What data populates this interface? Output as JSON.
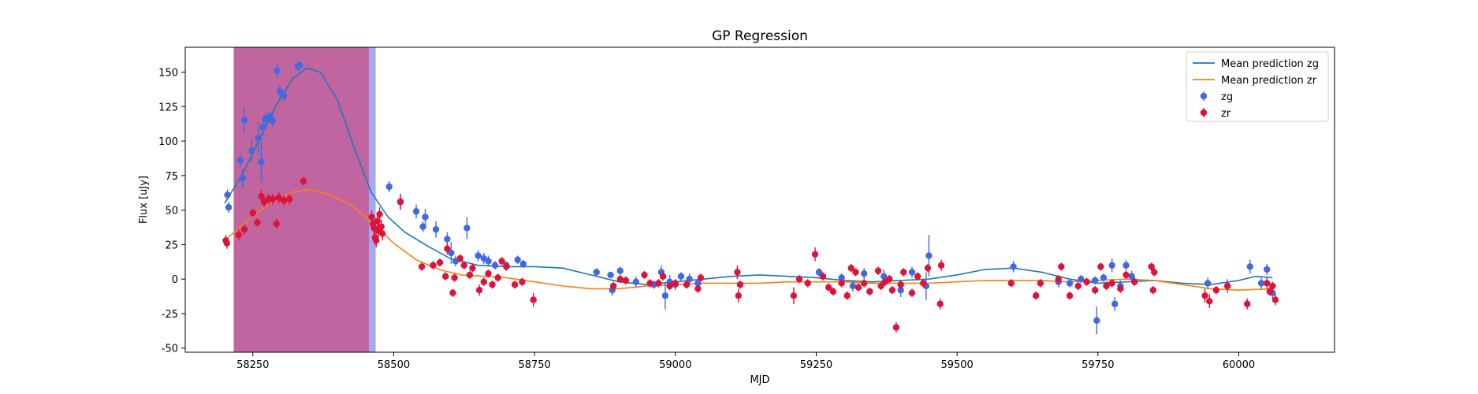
{
  "chart_data": {
    "type": "scatter",
    "title": "GP Regression",
    "xlabel": "MJD",
    "ylabel": "Flux [uJy]",
    "xlim": [
      58130,
      60170
    ],
    "ylim": [
      -53,
      168
    ],
    "xticks": [
      58250,
      58500,
      58750,
      59000,
      59250,
      59500,
      59750,
      60000
    ],
    "yticks": [
      -50,
      -25,
      0,
      25,
      50,
      75,
      100,
      125,
      150
    ],
    "legend_position": "upper right",
    "shaded_regions": [
      {
        "x0": 58216,
        "x1": 58456,
        "color": "#c0659f"
      },
      {
        "x0": 58456,
        "x1": 58468,
        "color": "#a8a8f0"
      }
    ],
    "series": [
      {
        "name": "Mean prediction zg",
        "kind": "line",
        "color": "#1f77b4",
        "x": [
          58200,
          58230,
          58260,
          58290,
          58320,
          58345,
          58370,
          58400,
          58430,
          58460,
          58490,
          58520,
          58560,
          58600,
          58650,
          58700,
          58750,
          58800,
          58850,
          58900,
          58950,
          59000,
          59050,
          59100,
          59150,
          59200,
          59250,
          59300,
          59350,
          59400,
          59450,
          59500,
          59550,
          59600,
          59650,
          59700,
          59750,
          59800,
          59850,
          59900,
          59950,
          60000,
          60030,
          60060
        ],
        "y": [
          55,
          75,
          100,
          125,
          145,
          153,
          150,
          130,
          95,
          63,
          45,
          34,
          24,
          15,
          10,
          9,
          9,
          8,
          3,
          -2,
          -4,
          -2,
          0,
          2,
          3,
          2,
          1,
          -1,
          -2,
          -1,
          0,
          3,
          7,
          8,
          5,
          0,
          -3,
          -2,
          -1,
          -3,
          -4,
          -1,
          2,
          1
        ]
      },
      {
        "name": "Mean prediction zr",
        "kind": "line",
        "color": "#ff7f0e",
        "x": [
          58200,
          58240,
          58280,
          58320,
          58350,
          58380,
          58420,
          58460,
          58500,
          58540,
          58580,
          58620,
          58660,
          58700,
          58750,
          58800,
          58850,
          58900,
          58950,
          59000,
          59050,
          59100,
          59150,
          59200,
          59250,
          59300,
          59350,
          59400,
          59450,
          59500,
          59550,
          59600,
          59650,
          59700,
          59750,
          59800,
          59850,
          59900,
          59950,
          60000,
          60060
        ],
        "y": [
          28,
          42,
          55,
          63,
          65,
          62,
          55,
          42,
          26,
          14,
          7,
          3,
          2,
          1,
          -2,
          -5,
          -7,
          -7,
          -5,
          -4,
          -3,
          -3,
          -3,
          -2,
          -2,
          -2,
          -3,
          -3,
          -3,
          -2,
          -1,
          -1,
          -1,
          -2,
          -1,
          0,
          -1,
          -4,
          -7,
          -8,
          -7
        ]
      },
      {
        "name": "zg",
        "kind": "errorbar",
        "color": "#4169e1",
        "points": [
          [
            58205,
            61,
            4
          ],
          [
            58207,
            52,
            4
          ],
          [
            58228,
            86,
            5
          ],
          [
            58232,
            73,
            7
          ],
          [
            58235,
            115,
            10
          ],
          [
            58248,
            93,
            8
          ],
          [
            58260,
            102,
            12
          ],
          [
            58265,
            85,
            15
          ],
          [
            58268,
            110,
            6
          ],
          [
            58272,
            116,
            5
          ],
          [
            58280,
            118,
            4
          ],
          [
            58285,
            115,
            5
          ],
          [
            58293,
            151,
            5
          ],
          [
            58298,
            136,
            5
          ],
          [
            58305,
            133,
            4
          ],
          [
            58330,
            154,
            3
          ],
          [
            58333,
            155,
            3
          ],
          [
            58492,
            67,
            4
          ],
          [
            58512,
            56,
            6
          ],
          [
            58540,
            49,
            5
          ],
          [
            58552,
            38,
            4
          ],
          [
            58556,
            45,
            6
          ],
          [
            58575,
            36,
            6
          ],
          [
            58595,
            29,
            5
          ],
          [
            58602,
            19,
            8
          ],
          [
            58610,
            13,
            4
          ],
          [
            58630,
            37,
            8
          ],
          [
            58650,
            17,
            4
          ],
          [
            58660,
            15,
            4
          ],
          [
            58668,
            13,
            4
          ],
          [
            58680,
            10,
            3
          ],
          [
            58700,
            10,
            3
          ],
          [
            58720,
            14,
            3
          ],
          [
            58730,
            11,
            3
          ],
          [
            58860,
            5,
            3
          ],
          [
            58885,
            3,
            2
          ],
          [
            58888,
            -8,
            4
          ],
          [
            58902,
            6,
            3
          ],
          [
            58930,
            -2,
            4
          ],
          [
            58962,
            -4,
            3
          ],
          [
            58975,
            5,
            5
          ],
          [
            58982,
            -12,
            10
          ],
          [
            58990,
            -2,
            5
          ],
          [
            59000,
            -4,
            4
          ],
          [
            59010,
            2,
            3
          ],
          [
            59025,
            0,
            4
          ],
          [
            59040,
            -3,
            3
          ],
          [
            59255,
            5,
            3
          ],
          [
            59295,
            1,
            3
          ],
          [
            59315,
            -5,
            4
          ],
          [
            59335,
            4,
            4
          ],
          [
            59370,
            2,
            5
          ],
          [
            59400,
            -8,
            5
          ],
          [
            59420,
            5,
            4
          ],
          [
            59445,
            -5,
            10
          ],
          [
            59450,
            17,
            15
          ],
          [
            59600,
            9,
            4
          ],
          [
            59680,
            -2,
            4
          ],
          [
            59700,
            -3,
            3
          ],
          [
            59720,
            0,
            3
          ],
          [
            59745,
            -1,
            3
          ],
          [
            59748,
            -30,
            10
          ],
          [
            59760,
            1,
            3
          ],
          [
            59775,
            10,
            5
          ],
          [
            59780,
            -18,
            5
          ],
          [
            59790,
            -5,
            4
          ],
          [
            59800,
            10,
            4
          ],
          [
            59810,
            2,
            4
          ],
          [
            59945,
            -3,
            4
          ],
          [
            59980,
            -5,
            5
          ],
          [
            60020,
            9,
            5
          ],
          [
            60040,
            -3,
            4
          ],
          [
            60050,
            7,
            4
          ],
          [
            60060,
            -10,
            4
          ]
        ]
      },
      {
        "name": "zr",
        "kind": "errorbar",
        "color": "#dc143c",
        "points": [
          [
            58202,
            28,
            4
          ],
          [
            58204,
            26,
            4
          ],
          [
            58225,
            32,
            4
          ],
          [
            58235,
            36,
            4
          ],
          [
            58250,
            48,
            3
          ],
          [
            58258,
            41,
            3
          ],
          [
            58265,
            60,
            5
          ],
          [
            58270,
            56,
            4
          ],
          [
            58278,
            58,
            4
          ],
          [
            58285,
            58,
            4
          ],
          [
            58292,
            40,
            4
          ],
          [
            58296,
            59,
            4
          ],
          [
            58305,
            57,
            4
          ],
          [
            58315,
            58,
            4
          ],
          [
            58340,
            71,
            3
          ],
          [
            58461,
            45,
            5
          ],
          [
            58463,
            40,
            5
          ],
          [
            58465,
            37,
            5
          ],
          [
            58467,
            30,
            5
          ],
          [
            58469,
            28,
            5
          ],
          [
            58471,
            42,
            5
          ],
          [
            58473,
            35,
            5
          ],
          [
            58475,
            47,
            5
          ],
          [
            58478,
            38,
            5
          ],
          [
            58480,
            33,
            5
          ],
          [
            58512,
            56,
            5
          ],
          [
            58550,
            9,
            3
          ],
          [
            58570,
            10,
            3
          ],
          [
            58582,
            12,
            3
          ],
          [
            58592,
            2,
            3
          ],
          [
            58595,
            22,
            4
          ],
          [
            58605,
            -10,
            3
          ],
          [
            58608,
            1,
            3
          ],
          [
            58618,
            15,
            3
          ],
          [
            58625,
            10,
            3
          ],
          [
            58635,
            3,
            3
          ],
          [
            58640,
            8,
            3
          ],
          [
            58652,
            -8,
            4
          ],
          [
            58660,
            -2,
            3
          ],
          [
            58668,
            4,
            3
          ],
          [
            58675,
            -4,
            3
          ],
          [
            58685,
            1,
            3
          ],
          [
            58692,
            13,
            3
          ],
          [
            58700,
            9,
            3
          ],
          [
            58715,
            -4,
            3
          ],
          [
            58728,
            -2,
            3
          ],
          [
            58748,
            -15,
            5
          ],
          [
            58890,
            -5,
            3
          ],
          [
            58902,
            0,
            3
          ],
          [
            58912,
            -1,
            3
          ],
          [
            58945,
            3,
            3
          ],
          [
            58955,
            -3,
            3
          ],
          [
            58970,
            -3,
            3
          ],
          [
            58978,
            2,
            3
          ],
          [
            58990,
            -5,
            3
          ],
          [
            59000,
            -3,
            3
          ],
          [
            59020,
            -4,
            3
          ],
          [
            59040,
            -7,
            3
          ],
          [
            59045,
            1,
            3
          ],
          [
            59110,
            5,
            5
          ],
          [
            59112,
            -12,
            5
          ],
          [
            59115,
            -4,
            3
          ],
          [
            59210,
            -12,
            6
          ],
          [
            59220,
            0,
            3
          ],
          [
            59235,
            -3,
            3
          ],
          [
            59248,
            18,
            5
          ],
          [
            59262,
            2,
            3
          ],
          [
            59272,
            -6,
            3
          ],
          [
            59280,
            -9,
            3
          ],
          [
            59295,
            -3,
            3
          ],
          [
            59305,
            -12,
            3
          ],
          [
            59312,
            8,
            3
          ],
          [
            59320,
            5,
            3
          ],
          [
            59325,
            -6,
            3
          ],
          [
            59335,
            -3,
            3
          ],
          [
            59345,
            -9,
            3
          ],
          [
            59360,
            6,
            3
          ],
          [
            59365,
            -5,
            3
          ],
          [
            59372,
            -2,
            3
          ],
          [
            59380,
            0,
            3
          ],
          [
            59385,
            -8,
            3
          ],
          [
            59392,
            -35,
            4
          ],
          [
            59400,
            -4,
            3
          ],
          [
            59405,
            5,
            3
          ],
          [
            59420,
            -10,
            3
          ],
          [
            59430,
            2,
            3
          ],
          [
            59440,
            -3,
            3
          ],
          [
            59448,
            8,
            3
          ],
          [
            59470,
            -18,
            4
          ],
          [
            59472,
            10,
            4
          ],
          [
            59596,
            -3,
            3
          ],
          [
            59640,
            -12,
            3
          ],
          [
            59648,
            -3,
            3
          ],
          [
            59680,
            0,
            3
          ],
          [
            59685,
            9,
            3
          ],
          [
            59700,
            -12,
            3
          ],
          [
            59715,
            -5,
            3
          ],
          [
            59730,
            -2,
            3
          ],
          [
            59745,
            -8,
            3
          ],
          [
            59755,
            9,
            3
          ],
          [
            59765,
            -5,
            3
          ],
          [
            59775,
            -3,
            3
          ],
          [
            59790,
            -7,
            3
          ],
          [
            59800,
            3,
            3
          ],
          [
            59815,
            -2,
            3
          ],
          [
            59845,
            9,
            3
          ],
          [
            59848,
            -8,
            3
          ],
          [
            59850,
            5,
            3
          ],
          [
            59940,
            -12,
            5
          ],
          [
            59948,
            -16,
            5
          ],
          [
            59960,
            -8,
            3
          ],
          [
            59980,
            -5,
            3
          ],
          [
            60015,
            -18,
            4
          ],
          [
            60050,
            -3,
            4
          ],
          [
            60055,
            -9,
            3
          ],
          [
            60060,
            -5,
            3
          ],
          [
            60065,
            -15,
            4
          ]
        ]
      }
    ]
  }
}
